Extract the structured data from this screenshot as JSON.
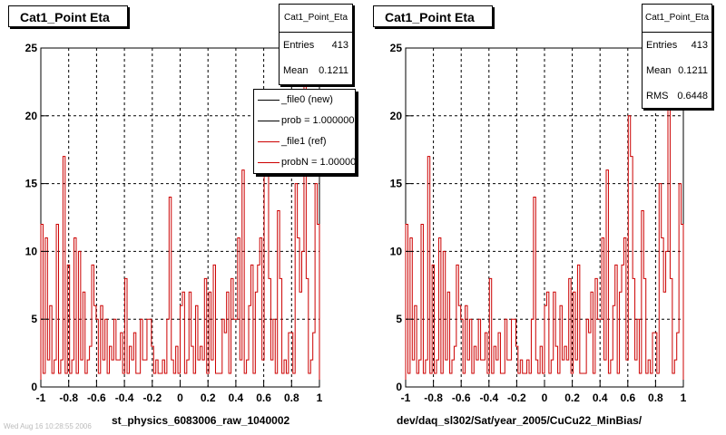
{
  "window": {
    "footer_text": "Wed Aug 16 10:28:55 2006"
  },
  "colors": {
    "new": "#000000",
    "ref": "#cc0000"
  },
  "legend": [
    {
      "label": "_file0 (new)",
      "color": "#000000"
    },
    {
      "label": "prob = 1.000000",
      "color": "#000000"
    },
    {
      "label": "_file1 (ref)",
      "color": "#cc0000"
    },
    {
      "label": "probN = 1.000000",
      "color": "#cc0000"
    }
  ],
  "panels": [
    {
      "title": "Cat1_Point Eta",
      "stats": {
        "name": "Cat1_Point_Eta",
        "rows": [
          {
            "key": "Entries",
            "value": "413"
          },
          {
            "key": "Mean",
            "value": "0.1211"
          }
        ]
      },
      "xtitle": "st_physics_6083006_raw_1040002"
    },
    {
      "title": "Cat1_Point Eta",
      "stats": {
        "name": "Cat1_Point_Eta",
        "rows": [
          {
            "key": "Entries",
            "value": "413"
          },
          {
            "key": "Mean",
            "value": "0.1211"
          },
          {
            "key": "RMS",
            "value": "0.6448"
          }
        ]
      },
      "xtitle": "dev/daq_sl302/Sat/year_2005/CuCu22_MinBias/"
    }
  ],
  "chart_data": [
    {
      "type": "histogram",
      "title": "Cat1_Point Eta",
      "xlabel": "st_physics_6083006_raw_1040002",
      "ylabel": "",
      "xlim": [
        -1,
        1
      ],
      "ylim": [
        0,
        25
      ],
      "xticks": [
        "-1",
        "-0.8",
        "-0.6",
        "-0.4",
        "-0.2",
        "0",
        "0.2",
        "0.4",
        "0.6",
        "0.8",
        "1"
      ],
      "yticks": [
        "0",
        "5",
        "10",
        "15",
        "20",
        "25"
      ],
      "grid": true,
      "series": [
        {
          "name": "_file1 (ref)",
          "color": "#cc0000",
          "values": [
            12,
            1,
            11,
            2,
            6,
            1,
            2,
            12,
            1,
            2,
            17,
            1,
            9,
            1,
            2,
            11,
            1,
            10,
            2,
            7,
            1,
            2,
            3,
            9,
            6,
            5,
            1,
            6,
            2,
            5,
            1,
            3,
            2,
            5,
            2,
            2,
            4,
            1,
            8,
            1,
            3,
            2,
            4,
            1,
            1,
            5,
            2,
            2,
            5,
            5,
            3,
            1,
            2,
            1,
            1,
            2,
            1,
            5,
            14,
            2,
            1,
            3,
            1,
            6,
            7,
            1,
            2,
            7,
            3,
            1,
            6,
            2,
            3,
            2,
            8,
            1,
            7,
            2,
            9,
            1,
            1,
            1,
            5,
            4,
            7,
            1,
            8,
            5,
            5,
            11,
            2,
            16,
            1,
            2,
            6,
            9,
            1,
            7,
            9,
            11,
            2,
            20,
            17,
            8,
            2,
            5,
            1,
            13,
            8,
            1,
            2,
            1,
            4,
            4,
            1,
            15,
            11,
            7,
            10,
            24,
            8,
            1,
            2,
            4,
            15,
            12
          ]
        }
      ]
    },
    {
      "type": "histogram",
      "title": "Cat1_Point Eta",
      "xlabel": "dev/daq_sl302/Sat/year_2005/CuCu22_MinBias/",
      "ylabel": "",
      "xlim": [
        -1,
        1
      ],
      "ylim": [
        0,
        25
      ],
      "xticks": [
        "-1",
        "-0.8",
        "-0.6",
        "-0.4",
        "-0.2",
        "0",
        "0.2",
        "0.4",
        "0.6",
        "0.8",
        "1"
      ],
      "yticks": [
        "0",
        "5",
        "10",
        "15",
        "20",
        "25"
      ],
      "grid": true,
      "series": [
        {
          "name": "_file1 (ref)",
          "color": "#cc0000",
          "values": [
            12,
            1,
            11,
            2,
            6,
            1,
            2,
            12,
            1,
            2,
            17,
            1,
            9,
            1,
            2,
            11,
            1,
            10,
            2,
            7,
            1,
            2,
            3,
            9,
            6,
            5,
            1,
            6,
            2,
            5,
            1,
            3,
            2,
            5,
            2,
            2,
            4,
            1,
            8,
            1,
            3,
            2,
            4,
            1,
            1,
            5,
            2,
            2,
            5,
            5,
            3,
            1,
            2,
            1,
            1,
            2,
            1,
            5,
            14,
            2,
            1,
            3,
            1,
            6,
            7,
            1,
            2,
            7,
            3,
            1,
            6,
            2,
            3,
            2,
            8,
            1,
            7,
            2,
            9,
            1,
            1,
            1,
            5,
            4,
            7,
            1,
            8,
            5,
            5,
            11,
            2,
            16,
            1,
            2,
            6,
            9,
            1,
            7,
            9,
            11,
            2,
            20,
            17,
            8,
            2,
            5,
            1,
            13,
            8,
            1,
            2,
            1,
            4,
            4,
            1,
            15,
            11,
            7,
            10,
            24,
            8,
            1,
            2,
            4,
            15,
            12
          ]
        }
      ]
    }
  ]
}
